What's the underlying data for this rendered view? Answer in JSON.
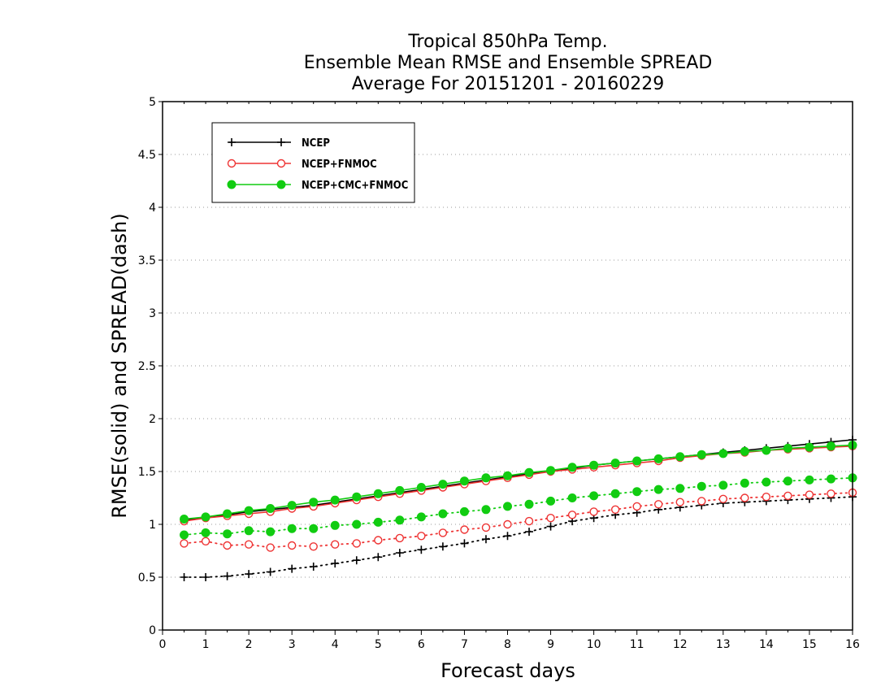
{
  "chart_data": {
    "type": "line",
    "title": [
      "Tropical 850hPa Temp.",
      "Ensemble Mean RMSE and Ensemble SPREAD",
      "Average For 20151201 - 20160229"
    ],
    "xlabel": "Forecast days",
    "ylabel": "RMSE(solid) and SPREAD(dash)",
    "xlim": [
      0,
      16
    ],
    "ylim": [
      0,
      5
    ],
    "xticks": [
      0,
      1,
      2,
      3,
      4,
      5,
      6,
      7,
      8,
      9,
      10,
      11,
      12,
      13,
      14,
      15,
      16
    ],
    "yticks": [
      0,
      0.5,
      1,
      1.5,
      2,
      2.5,
      3,
      3.5,
      4,
      4.5,
      5
    ],
    "grid": "horizontal-dotted",
    "legend_position": "top-left",
    "x": [
      0.5,
      1,
      1.5,
      2,
      2.5,
      3,
      3.5,
      4,
      4.5,
      5,
      5.5,
      6,
      6.5,
      7,
      7.5,
      8,
      8.5,
      9,
      9.5,
      10,
      10.5,
      11,
      11.5,
      12,
      12.5,
      13,
      13.5,
      14,
      14.5,
      15,
      15.5,
      16
    ],
    "series": [
      {
        "name": "NCEP",
        "color": "#000000",
        "marker": "plus",
        "rmse": [
          1.04,
          1.07,
          1.09,
          1.12,
          1.14,
          1.16,
          1.18,
          1.21,
          1.24,
          1.27,
          1.3,
          1.33,
          1.36,
          1.39,
          1.42,
          1.45,
          1.48,
          1.51,
          1.53,
          1.56,
          1.58,
          1.6,
          1.62,
          1.64,
          1.66,
          1.68,
          1.7,
          1.72,
          1.74,
          1.76,
          1.78,
          1.8
        ],
        "spread": [
          0.5,
          0.5,
          0.51,
          0.53,
          0.55,
          0.58,
          0.6,
          0.63,
          0.66,
          0.69,
          0.73,
          0.76,
          0.79,
          0.82,
          0.86,
          0.89,
          0.93,
          0.98,
          1.03,
          1.06,
          1.09,
          1.11,
          1.14,
          1.16,
          1.18,
          1.2,
          1.21,
          1.22,
          1.23,
          1.24,
          1.25,
          1.26
        ]
      },
      {
        "name": "NCEP+FNMOC",
        "color": "#ee3333",
        "marker": "open-circle",
        "rmse": [
          1.03,
          1.06,
          1.08,
          1.1,
          1.12,
          1.15,
          1.17,
          1.2,
          1.23,
          1.26,
          1.29,
          1.32,
          1.35,
          1.38,
          1.41,
          1.44,
          1.47,
          1.5,
          1.52,
          1.54,
          1.56,
          1.58,
          1.6,
          1.63,
          1.65,
          1.67,
          1.68,
          1.7,
          1.71,
          1.72,
          1.73,
          1.74
        ],
        "spread": [
          0.82,
          0.84,
          0.8,
          0.81,
          0.78,
          0.8,
          0.79,
          0.81,
          0.82,
          0.85,
          0.87,
          0.89,
          0.92,
          0.95,
          0.97,
          1.0,
          1.03,
          1.06,
          1.09,
          1.12,
          1.14,
          1.17,
          1.19,
          1.21,
          1.22,
          1.24,
          1.25,
          1.26,
          1.27,
          1.28,
          1.29,
          1.3
        ]
      },
      {
        "name": "NCEP+CMC+FNMOC",
        "color": "#11cc11",
        "marker": "filled-circle",
        "rmse": [
          1.05,
          1.07,
          1.1,
          1.13,
          1.15,
          1.18,
          1.21,
          1.23,
          1.26,
          1.29,
          1.32,
          1.35,
          1.38,
          1.41,
          1.44,
          1.46,
          1.49,
          1.51,
          1.54,
          1.56,
          1.58,
          1.6,
          1.62,
          1.64,
          1.66,
          1.67,
          1.69,
          1.7,
          1.72,
          1.73,
          1.74,
          1.75
        ],
        "spread": [
          0.9,
          0.92,
          0.91,
          0.94,
          0.93,
          0.96,
          0.96,
          0.99,
          1.0,
          1.02,
          1.04,
          1.07,
          1.1,
          1.12,
          1.14,
          1.17,
          1.19,
          1.22,
          1.25,
          1.27,
          1.29,
          1.31,
          1.33,
          1.34,
          1.36,
          1.37,
          1.39,
          1.4,
          1.41,
          1.42,
          1.43,
          1.44
        ]
      }
    ]
  }
}
